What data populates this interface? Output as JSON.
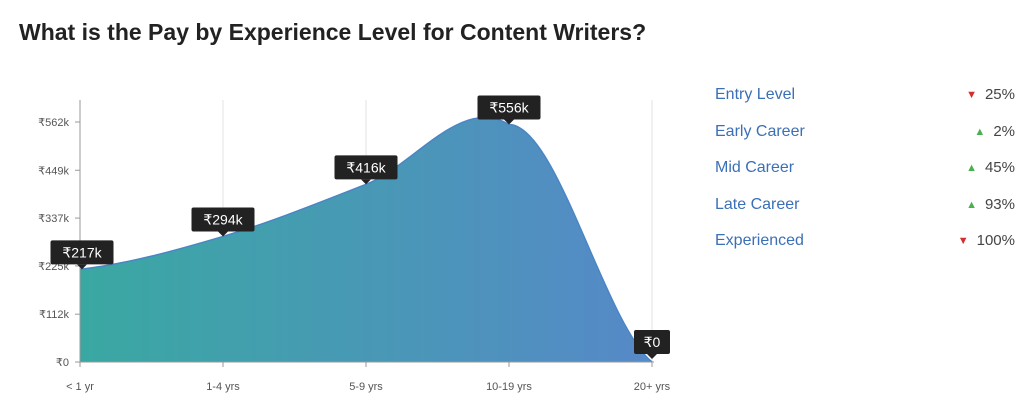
{
  "title": "What is the Pay by Experience Level for Content Writers?",
  "chart_data": {
    "type": "area",
    "categories": [
      "< 1 yr",
      "1-4 yrs",
      "5-9 yrs",
      "10-19 yrs",
      "20+ yrs"
    ],
    "values": [
      217,
      294,
      416,
      556,
      0
    ],
    "value_labels": [
      "₹217k",
      "₹294k",
      "₹416k",
      "₹556k",
      "₹0"
    ],
    "y_ticks": [
      0,
      112,
      225,
      337,
      449,
      562
    ],
    "y_tick_labels": [
      "₹0",
      "₹112k",
      "₹225k",
      "₹337k",
      "₹449k",
      "₹562k"
    ],
    "ylim": [
      0,
      562
    ],
    "grid": "vertical",
    "colors": {
      "gradient_start": "#3aa8a2",
      "gradient_end": "#5689c8",
      "line": "#4a86c5",
      "label_bg": "#222222"
    }
  },
  "legend": [
    {
      "label": "Entry Level",
      "direction": "down",
      "change": "25%"
    },
    {
      "label": "Early Career",
      "direction": "up",
      "change": "2%"
    },
    {
      "label": "Mid Career",
      "direction": "up",
      "change": "45%"
    },
    {
      "label": "Late Career",
      "direction": "up",
      "change": "93%"
    },
    {
      "label": "Experienced",
      "direction": "down",
      "change": "100%"
    }
  ]
}
